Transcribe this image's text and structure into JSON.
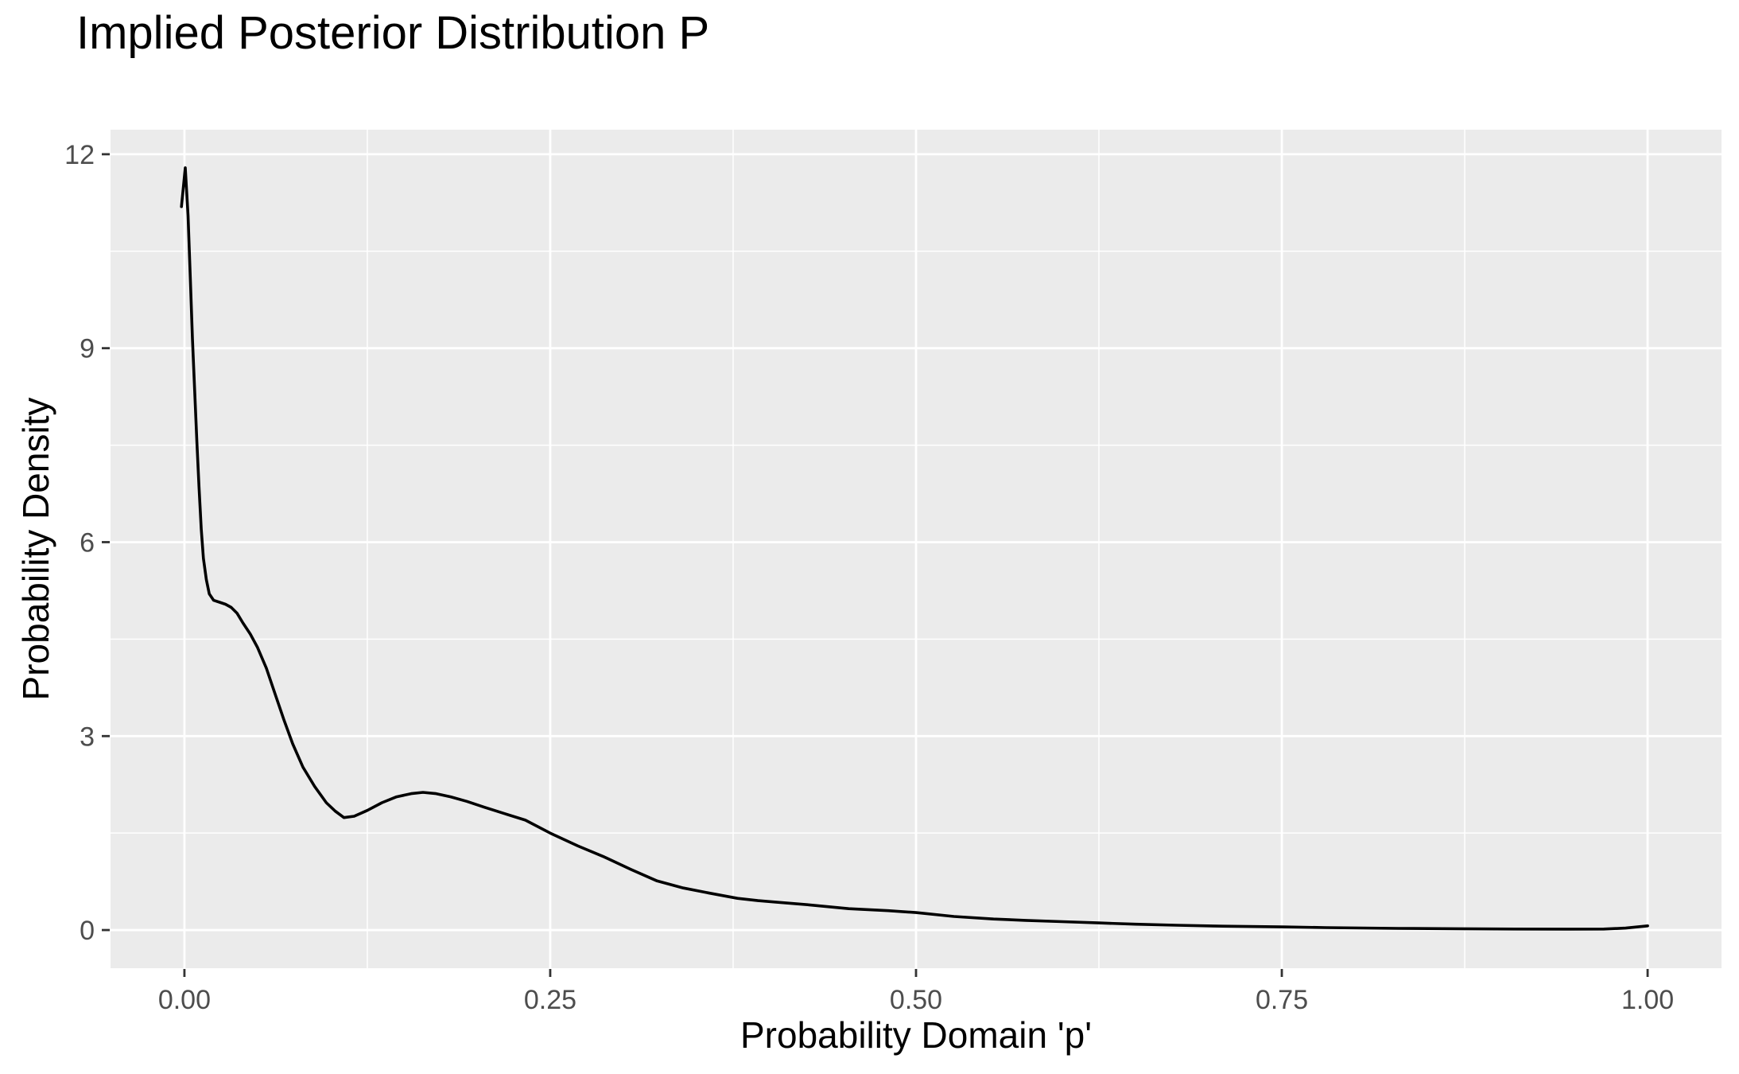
{
  "page": {
    "background": "#FFFFFF"
  },
  "chart_data": {
    "type": "line",
    "title": "Implied Posterior Distribution P",
    "xlabel": "Probability Domain 'p'",
    "ylabel": "Probability Density",
    "x_ticks": [
      0.0,
      0.25,
      0.5,
      0.75,
      1.0
    ],
    "x_tick_labels": [
      "0.00",
      "0.25",
      "0.50",
      "0.75",
      "1.00"
    ],
    "y_ticks": [
      0,
      3,
      6,
      9,
      12
    ],
    "y_tick_labels": [
      "0",
      "3",
      "6",
      "9",
      "12"
    ],
    "x_minor_gridlines": [
      0.125,
      0.375,
      0.625,
      0.875
    ],
    "y_minor_gridlines": [
      1.5,
      4.5,
      7.5,
      10.5
    ],
    "xlim": [
      -0.0505,
      1.0505
    ],
    "ylim": [
      -0.59,
      12.38
    ],
    "grid": true,
    "legend": "none",
    "style": {
      "panel_background": "#EBEBEB",
      "gridline_color": "#FFFFFF",
      "major_grid_width": 2.8,
      "minor_grid_width": 1.5,
      "tick_color": "#333333",
      "tick_label_color": "#4D4D4D",
      "text_color": "#000000",
      "curve_color": "#000000",
      "curve_width": 3.6
    },
    "series": [
      {
        "name": "posterior-density-curve",
        "color": "#000000",
        "points": [
          [
            -0.002,
            11.19
          ],
          [
            0.0006,
            11.79
          ],
          [
            0.0025,
            11.05
          ],
          [
            0.004,
            10.1
          ],
          [
            0.0055,
            9.15
          ],
          [
            0.007,
            8.35
          ],
          [
            0.0085,
            7.55
          ],
          [
            0.01,
            6.85
          ],
          [
            0.0115,
            6.2
          ],
          [
            0.013,
            5.75
          ],
          [
            0.015,
            5.42
          ],
          [
            0.017,
            5.2
          ],
          [
            0.02,
            5.1
          ],
          [
            0.024,
            5.07
          ],
          [
            0.028,
            5.04
          ],
          [
            0.032,
            4.99
          ],
          [
            0.036,
            4.9
          ],
          [
            0.04,
            4.75
          ],
          [
            0.045,
            4.58
          ],
          [
            0.05,
            4.37
          ],
          [
            0.056,
            4.05
          ],
          [
            0.062,
            3.65
          ],
          [
            0.068,
            3.25
          ],
          [
            0.074,
            2.88
          ],
          [
            0.081,
            2.52
          ],
          [
            0.089,
            2.22
          ],
          [
            0.097,
            1.97
          ],
          [
            0.103,
            1.84
          ],
          [
            0.109,
            1.74
          ],
          [
            0.116,
            1.76
          ],
          [
            0.125,
            1.85
          ],
          [
            0.135,
            1.97
          ],
          [
            0.145,
            2.06
          ],
          [
            0.155,
            2.11
          ],
          [
            0.163,
            2.13
          ],
          [
            0.172,
            2.11
          ],
          [
            0.182,
            2.06
          ],
          [
            0.193,
            1.99
          ],
          [
            0.205,
            1.9
          ],
          [
            0.219,
            1.8
          ],
          [
            0.233,
            1.7
          ],
          [
            0.25,
            1.5
          ],
          [
            0.269,
            1.3
          ],
          [
            0.287,
            1.13
          ],
          [
            0.305,
            0.94
          ],
          [
            0.323,
            0.76
          ],
          [
            0.341,
            0.65
          ],
          [
            0.359,
            0.57
          ],
          [
            0.378,
            0.49
          ],
          [
            0.392,
            0.455
          ],
          [
            0.405,
            0.43
          ],
          [
            0.427,
            0.39
          ],
          [
            0.454,
            0.33
          ],
          [
            0.481,
            0.3
          ],
          [
            0.5,
            0.27
          ],
          [
            0.526,
            0.21
          ],
          [
            0.553,
            0.17
          ],
          [
            0.575,
            0.15
          ],
          [
            0.6,
            0.13
          ],
          [
            0.625,
            0.11
          ],
          [
            0.65,
            0.09
          ],
          [
            0.678,
            0.074
          ],
          [
            0.71,
            0.06
          ],
          [
            0.75,
            0.049
          ],
          [
            0.78,
            0.038
          ],
          [
            0.83,
            0.025
          ],
          [
            0.87,
            0.02
          ],
          [
            0.91,
            0.016
          ],
          [
            0.945,
            0.014
          ],
          [
            0.97,
            0.016
          ],
          [
            0.985,
            0.03
          ],
          [
            1.0,
            0.065
          ]
        ]
      }
    ]
  }
}
